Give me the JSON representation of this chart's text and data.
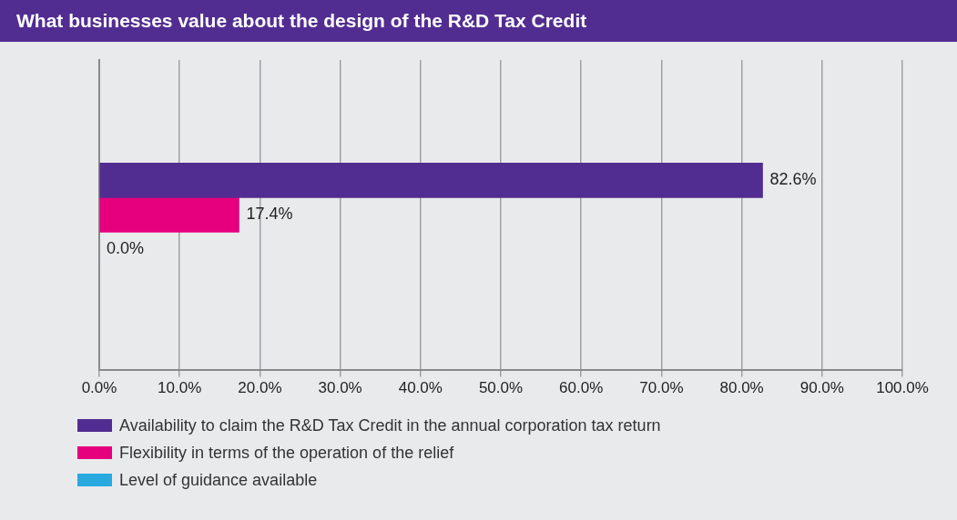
{
  "chart_data": {
    "type": "bar",
    "orientation": "horizontal",
    "title": "What businesses value about the design of the R&D Tax Credit",
    "categories": [
      null
    ],
    "series": [
      {
        "name": "Availability to claim the R&D Tax Credit in the annual corporation tax return",
        "color": "#522d91",
        "values": [
          82.6
        ],
        "value_labels": [
          "82.6%"
        ]
      },
      {
        "name": "Flexibility in terms of the operation of the relief",
        "color": "#e6007e",
        "values": [
          17.4
        ],
        "value_labels": [
          "17.4%"
        ]
      },
      {
        "name": "Level of guidance available",
        "color": "#29a8e0",
        "values": [
          0
        ],
        "value_labels": [
          "0.0%"
        ]
      }
    ],
    "xlim": [
      0,
      100
    ],
    "xticks": [
      {
        "value": 0,
        "label": "0.0%"
      },
      {
        "value": 10,
        "label": "10.0%"
      },
      {
        "value": 20,
        "label": "20.0%"
      },
      {
        "value": 30,
        "label": "30.0%"
      },
      {
        "value": 40,
        "label": "40.0%"
      },
      {
        "value": 50,
        "label": "50.0%"
      },
      {
        "value": 60,
        "label": "60.0%"
      },
      {
        "value": 70,
        "label": "70.0%"
      },
      {
        "value": 80,
        "label": "80.0%"
      },
      {
        "value": 90,
        "label": "90.0%"
      },
      {
        "value": 100,
        "label": "100.0%"
      }
    ],
    "grid": "x",
    "legend": "bottom"
  }
}
